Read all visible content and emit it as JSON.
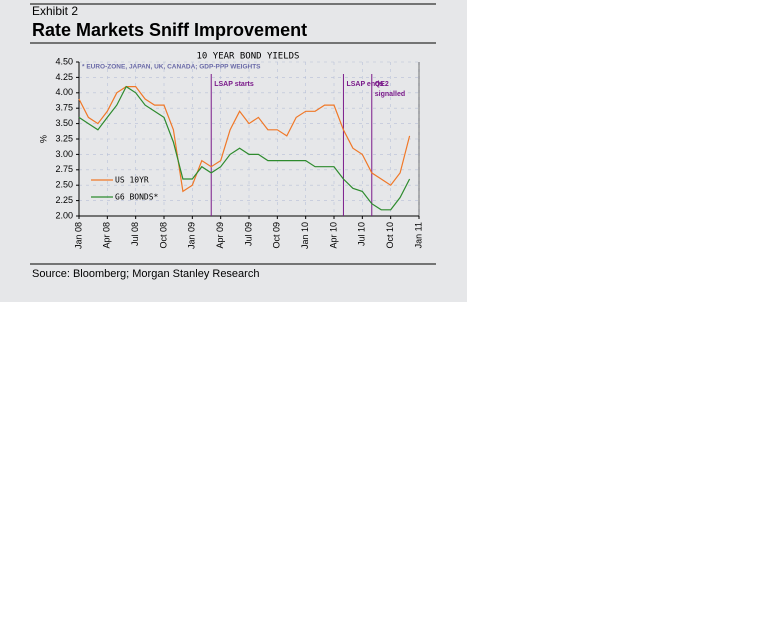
{
  "exhibit": "Exhibit 2",
  "headline": "Rate Markets Sniff Improvement",
  "source": "Source:  Bloomberg; Morgan Stanley Research",
  "chart_data": {
    "type": "line",
    "title": "10 YEAR BOND YIELDS",
    "subtitle": "* EURO-ZONE, JAPAN, UK, CANADA; GDP-PPP WEIGHTS",
    "ylabel": "%",
    "x": [
      "2008-01",
      "2008-02",
      "2008-03",
      "2008-04",
      "2008-05",
      "2008-06",
      "2008-07",
      "2008-08",
      "2008-09",
      "2008-10",
      "2008-11",
      "2008-12",
      "2009-01",
      "2009-02",
      "2009-03",
      "2009-04",
      "2009-05",
      "2009-06",
      "2009-07",
      "2009-08",
      "2009-09",
      "2009-10",
      "2009-11",
      "2009-12",
      "2010-01",
      "2010-02",
      "2010-03",
      "2010-04",
      "2010-05",
      "2010-06",
      "2010-07",
      "2010-08",
      "2010-09",
      "2010-10",
      "2010-11",
      "2010-12"
    ],
    "series": [
      {
        "name": "US 10YR",
        "color": "#f07828",
        "values": [
          3.9,
          3.6,
          3.5,
          3.7,
          4.0,
          4.1,
          4.1,
          3.9,
          3.8,
          3.8,
          3.4,
          2.4,
          2.5,
          2.9,
          2.8,
          2.9,
          3.4,
          3.7,
          3.5,
          3.6,
          3.4,
          3.4,
          3.3,
          3.6,
          3.7,
          3.7,
          3.8,
          3.8,
          3.4,
          3.1,
          3.0,
          2.7,
          2.6,
          2.5,
          2.7,
          3.3
        ]
      },
      {
        "name": "G6 BONDS*",
        "color": "#2e8b2e",
        "values": [
          3.6,
          3.5,
          3.4,
          3.6,
          3.8,
          4.1,
          4.0,
          3.8,
          3.7,
          3.6,
          3.2,
          2.6,
          2.6,
          2.8,
          2.7,
          2.8,
          3.0,
          3.1,
          3.0,
          3.0,
          2.9,
          2.9,
          2.9,
          2.9,
          2.9,
          2.8,
          2.8,
          2.8,
          2.6,
          2.45,
          2.4,
          2.2,
          2.1,
          2.1,
          2.3,
          2.6
        ]
      }
    ],
    "xlim": [
      "2008-01",
      "2011-01"
    ],
    "xticks": [
      {
        "value": "2008-01",
        "label": "Jan 08"
      },
      {
        "value": "2008-04",
        "label": "Apr 08"
      },
      {
        "value": "2008-07",
        "label": "Jul 08"
      },
      {
        "value": "2008-10",
        "label": "Oct 08"
      },
      {
        "value": "2009-01",
        "label": "Jan 09"
      },
      {
        "value": "2009-04",
        "label": "Apr 09"
      },
      {
        "value": "2009-07",
        "label": "Jul 09"
      },
      {
        "value": "2009-10",
        "label": "Oct 09"
      },
      {
        "value": "2010-01",
        "label": "Jan 10"
      },
      {
        "value": "2010-04",
        "label": "Apr 10"
      },
      {
        "value": "2010-07",
        "label": "Jul 10"
      },
      {
        "value": "2010-10",
        "label": "Oct 10"
      },
      {
        "value": "2011-01",
        "label": "Jan 11"
      }
    ],
    "ylim": [
      2,
      4.5
    ],
    "yticks": [
      {
        "value": 2,
        "label": "2.00"
      },
      2.25,
      {
        "value": 2.5,
        "label": "2.50"
      },
      2.75,
      {
        "value": 3,
        "label": "3.00"
      },
      3.25,
      {
        "value": 3.5,
        "label": "3.50"
      },
      3.75,
      {
        "value": 4,
        "label": "4.00"
      },
      4.25,
      {
        "value": 4.5,
        "label": "4.50"
      }
    ],
    "grid": true,
    "legend": "lower left",
    "annotations": [
      {
        "x": "2009-03",
        "lines": [
          "LSAP starts"
        ]
      },
      {
        "x": "2010-05",
        "lines": [
          "LSAP ends"
        ]
      },
      {
        "x": "2010-08",
        "lines": [
          "QE2",
          "signalled"
        ]
      }
    ],
    "annotation_color": "#7a1a8a"
  }
}
